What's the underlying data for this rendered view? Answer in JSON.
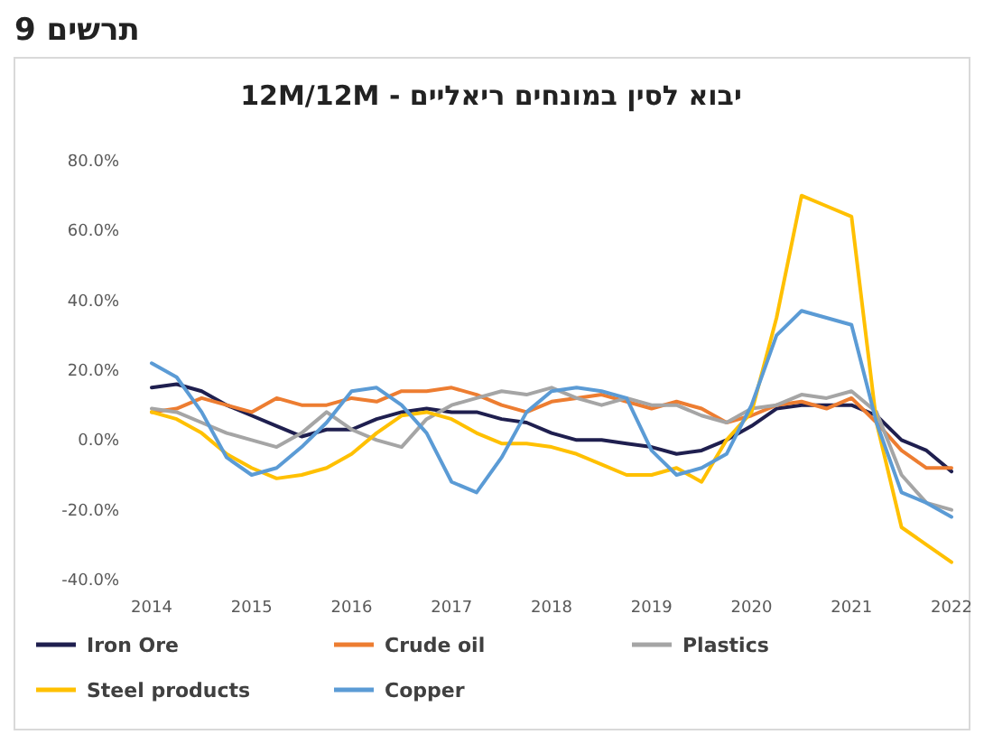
{
  "chart_data": {
    "type": "line",
    "title": "תרשים 9",
    "subtitle": "יבוא לסין במונחים ריאליים - 12M/12M",
    "x": [
      2014,
      2014.25,
      2014.5,
      2014.75,
      2015,
      2015.25,
      2015.5,
      2015.75,
      2016,
      2016.25,
      2016.5,
      2016.75,
      2017,
      2017.25,
      2017.5,
      2017.75,
      2018,
      2018.25,
      2018.5,
      2018.75,
      2019,
      2019.25,
      2019.5,
      2019.75,
      2020,
      2020.25,
      2020.5,
      2020.75,
      2021,
      2021.25,
      2021.5,
      2021.75,
      2022
    ],
    "series": [
      {
        "name": "Iron Ore",
        "color": "#1f1f4f",
        "values": [
          15,
          16,
          14,
          10,
          7,
          4,
          1,
          3,
          3,
          6,
          8,
          9,
          8,
          8,
          6,
          5,
          2,
          0,
          0,
          -1,
          -2,
          -4,
          -3,
          0,
          4,
          9,
          10,
          10,
          10,
          7,
          0,
          -3,
          -9
        ]
      },
      {
        "name": "Crude oil",
        "color": "#ed7d31",
        "values": [
          8,
          9,
          12,
          10,
          8,
          12,
          10,
          10,
          12,
          11,
          14,
          14,
          15,
          13,
          10,
          8,
          11,
          12,
          13,
          11,
          9,
          11,
          9,
          5,
          7,
          10,
          11,
          9,
          12,
          5,
          -3,
          -8,
          -8
        ]
      },
      {
        "name": "Plastics",
        "color": "#a5a5a5",
        "values": [
          9,
          8,
          5,
          2,
          0,
          -2,
          2,
          8,
          3,
          0,
          -2,
          6,
          10,
          12,
          14,
          13,
          15,
          12,
          10,
          12,
          10,
          10,
          7,
          5,
          9,
          10,
          13,
          12,
          14,
          8,
          -10,
          -18,
          -20
        ]
      },
      {
        "name": "Steel products",
        "color": "#ffc000",
        "values": [
          8,
          6,
          2,
          -4,
          -8,
          -11,
          -10,
          -8,
          -4,
          2,
          7,
          8,
          6,
          2,
          -1,
          -1,
          -2,
          -4,
          -7,
          -10,
          -10,
          -8,
          -12,
          0,
          8,
          35,
          70,
          67,
          64,
          5,
          -25,
          -30,
          -35
        ]
      },
      {
        "name": "Copper",
        "color": "#5b9bd5",
        "values": [
          22,
          18,
          8,
          -5,
          -10,
          -8,
          -2,
          5,
          14,
          15,
          10,
          2,
          -12,
          -15,
          -5,
          8,
          14,
          15,
          14,
          12,
          -3,
          -10,
          -8,
          -4,
          10,
          30,
          37,
          35,
          33,
          5,
          -15,
          -18,
          -22
        ]
      }
    ],
    "xlim": [
      2014,
      2022
    ],
    "xticks": [
      2014,
      2015,
      2016,
      2017,
      2018,
      2019,
      2020,
      2021,
      2022
    ],
    "ylim": [
      -40,
      80
    ],
    "yticks": [
      {
        "value": -40,
        "label": "-40.0%"
      },
      {
        "value": -20,
        "label": "-20.0%"
      },
      {
        "value": 0,
        "label": "0.0%"
      },
      {
        "value": 20,
        "label": "20.0%"
      },
      {
        "value": 40,
        "label": "40.0%"
      },
      {
        "value": 60,
        "label": "60.0%"
      },
      {
        "value": 80,
        "label": "80.0%"
      }
    ],
    "legend": "bottom"
  }
}
